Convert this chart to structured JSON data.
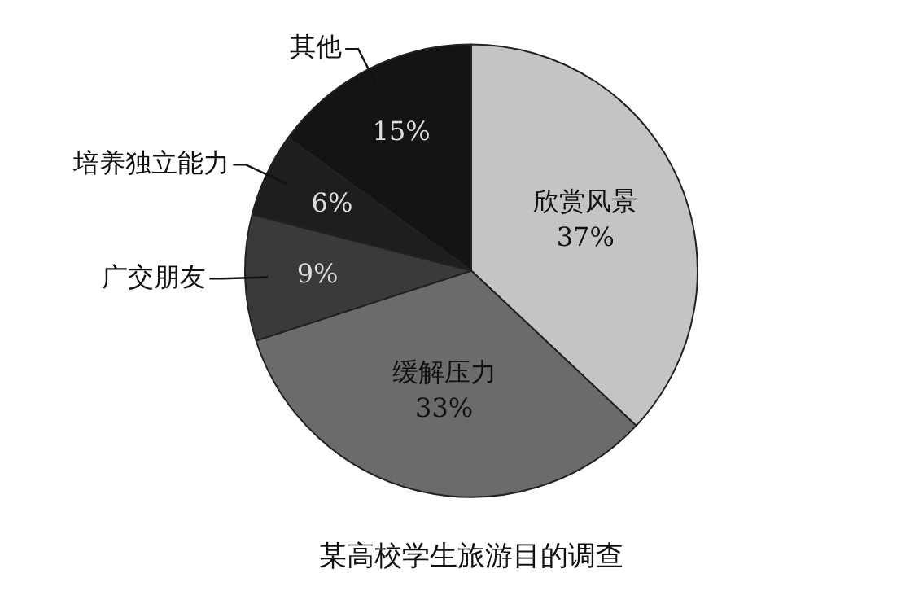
{
  "chart_data": {
    "type": "pie",
    "title": "某高校学生旅游目的调查",
    "categories": [
      "欣赏风景",
      "缓解压力",
      "广交朋友",
      "培养独立能力",
      "其他"
    ],
    "values": [
      37,
      33,
      9,
      6,
      15
    ],
    "value_labels": [
      "37%",
      "33%",
      "9%",
      "6%",
      "15%"
    ],
    "colors": [
      "#c4c4c4",
      "#6b6b6b",
      "#3a3a3a",
      "#1e1e1e",
      "#141414"
    ],
    "legend": false
  }
}
